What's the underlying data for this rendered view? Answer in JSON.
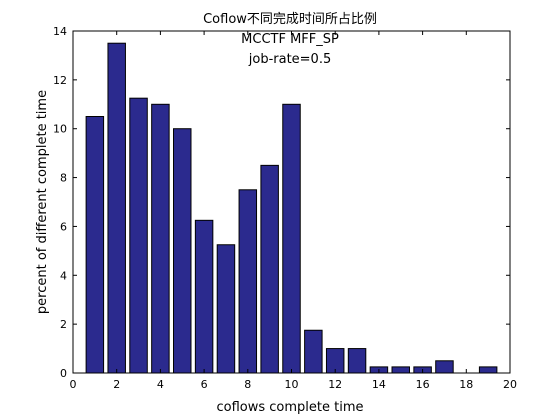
{
  "chart_data": {
    "type": "bar",
    "title": "Coflow不同完成时间所占比例",
    "annotations": [
      "MCCTF MFF_SP",
      "job-rate=0.5"
    ],
    "xlabel": "coflows complete time",
    "ylabel": "percent of different complete time",
    "x": [
      1,
      2,
      3,
      4,
      5,
      6,
      7,
      8,
      9,
      10,
      11,
      12,
      13,
      14,
      15,
      16,
      17,
      18,
      19
    ],
    "values": [
      10.5,
      13.5,
      11.25,
      11.0,
      10.0,
      6.25,
      5.25,
      7.5,
      8.5,
      11.0,
      1.75,
      1.0,
      1.0,
      0.25,
      0.25,
      0.25,
      0.5,
      0.0,
      0.25
    ],
    "xlim": [
      0,
      20
    ],
    "ylim": [
      0,
      14
    ],
    "xticks": [
      0,
      2,
      4,
      6,
      8,
      10,
      12,
      14,
      16,
      18,
      20
    ],
    "yticks": [
      0,
      2,
      4,
      6,
      8,
      10,
      12,
      14
    ],
    "bar_color": "#2b2a8e",
    "bar_edge_color": "#000000",
    "grid": false,
    "legend": "none"
  }
}
